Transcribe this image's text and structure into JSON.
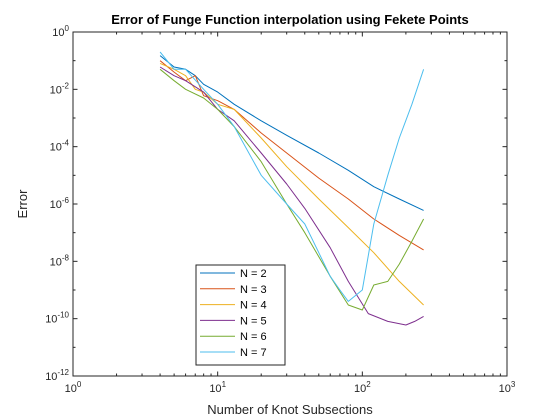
{
  "chart_data": {
    "type": "line",
    "title": "Error of Funge Function interpolation using Fekete Points",
    "xlabel": "Number of Knot Subsections",
    "ylabel": "Error",
    "xscale": "log",
    "yscale": "log",
    "xlim": [
      1,
      1000
    ],
    "ylim": [
      1e-12,
      1
    ],
    "x_ticks": [
      {
        "base": "10",
        "exp": "0"
      },
      {
        "base": "10",
        "exp": "1"
      },
      {
        "base": "10",
        "exp": "2"
      },
      {
        "base": "10",
        "exp": "3"
      }
    ],
    "y_ticks": [
      {
        "base": "10",
        "exp": "-12"
      },
      {
        "base": "10",
        "exp": "-10"
      },
      {
        "base": "10",
        "exp": "-8"
      },
      {
        "base": "10",
        "exp": "-6"
      },
      {
        "base": "10",
        "exp": "-4"
      },
      {
        "base": "10",
        "exp": "-2"
      },
      {
        "base": "10",
        "exp": "0"
      }
    ],
    "grid": false,
    "legend_position": "lower-center",
    "series": [
      {
        "name": "N = 2",
        "color": "#0072BD",
        "x": [
          4,
          5,
          6,
          7,
          8,
          10,
          13,
          20,
          30,
          50,
          80,
          120,
          180,
          265
        ],
        "y": [
          0.15,
          0.06,
          0.05,
          0.03,
          0.015,
          0.008,
          0.003,
          0.0008,
          0.00025,
          6e-05,
          1.5e-05,
          4e-06,
          1.5e-06,
          6e-07
        ]
      },
      {
        "name": "N = 3",
        "color": "#D95319",
        "x": [
          4,
          5,
          6,
          7,
          8,
          10,
          13,
          20,
          30,
          50,
          80,
          120,
          180,
          265
        ],
        "y": [
          0.1,
          0.04,
          0.02,
          0.03,
          0.006,
          0.004,
          0.002,
          0.0003,
          6e-05,
          8e-06,
          1.5e-06,
          3e-07,
          8e-08,
          2.5e-08
        ]
      },
      {
        "name": "N = 4",
        "color": "#EDB120",
        "x": [
          4,
          5,
          6,
          7,
          8,
          10,
          13,
          20,
          30,
          50,
          80,
          120,
          180,
          265
        ],
        "y": [
          0.08,
          0.05,
          0.03,
          0.01,
          0.008,
          0.003,
          0.002,
          0.0002,
          2e-05,
          1.5e-06,
          1.5e-07,
          2e-08,
          2e-09,
          3e-10
        ]
      },
      {
        "name": "N = 5",
        "color": "#7E2F8E",
        "x": [
          4,
          5,
          6,
          8,
          10,
          13,
          20,
          30,
          40,
          60,
          80,
          110,
          150,
          200,
          230,
          265
        ],
        "y": [
          0.06,
          0.03,
          0.02,
          0.008,
          0.002,
          0.0008,
          6e-05,
          5e-06,
          7e-07,
          3e-08,
          2e-09,
          1.5e-10,
          8e-11,
          6e-11,
          8e-11,
          1.2e-10
        ]
      },
      {
        "name": "N = 6",
        "color": "#77AC30",
        "x": [
          4,
          5,
          6,
          8,
          10,
          13,
          20,
          30,
          40,
          60,
          80,
          100,
          120,
          150,
          180,
          220,
          265
        ],
        "y": [
          0.05,
          0.02,
          0.01,
          0.005,
          0.002,
          0.0005,
          3e-05,
          1e-06,
          1e-07,
          3e-09,
          3e-10,
          2e-10,
          1.5e-09,
          2e-09,
          8e-09,
          5e-08,
          3e-07
        ]
      },
      {
        "name": "N = 7",
        "color": "#4DBEEE",
        "x": [
          4,
          5,
          6,
          8,
          10,
          13,
          20,
          30,
          40,
          50,
          60,
          70,
          80,
          100,
          120,
          150,
          180,
          220,
          265
        ],
        "y": [
          0.2,
          0.05,
          0.05,
          0.01,
          0.003,
          0.0005,
          1e-05,
          1e-06,
          2e-07,
          2e-08,
          3e-09,
          1e-09,
          4e-10,
          1e-09,
          2e-07,
          1e-05,
          0.0002,
          0.003,
          0.05
        ]
      }
    ]
  }
}
